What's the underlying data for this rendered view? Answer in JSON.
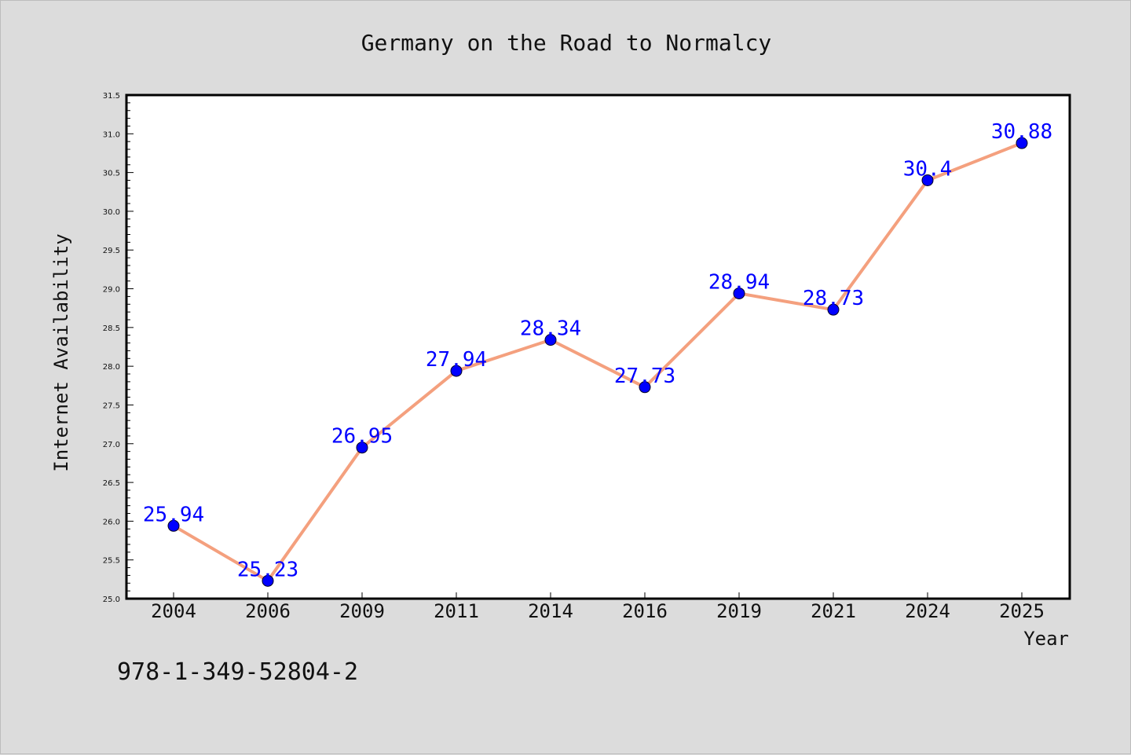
{
  "chart_data": {
    "type": "line",
    "title": "Germany on the Road to Normalcy",
    "xlabel": "Year",
    "ylabel": "Internet Availability",
    "categories": [
      "2004",
      "2006",
      "2009",
      "2011",
      "2014",
      "2016",
      "2019",
      "2021",
      "2024",
      "2025"
    ],
    "series": [
      {
        "values": [
          25.94,
          25.23,
          26.95,
          27.94,
          28.34,
          27.73,
          28.94,
          28.73,
          30.4,
          30.88
        ],
        "data_labels": [
          "25.94",
          "25.23",
          "26.95",
          "27.94",
          "28.34",
          "27.73",
          "28.94",
          "28.73",
          "30.4",
          "30.88"
        ],
        "line_color": "#f4a07e",
        "marker_color": "#0000ff"
      }
    ],
    "ylim": [
      25.0,
      31.5
    ],
    "y_ticks": [
      "25.0",
      "25.5",
      "26.0",
      "26.5",
      "27.0",
      "27.5",
      "28.0",
      "28.5",
      "29.0",
      "29.5",
      "30.0",
      "30.5",
      "31.0",
      "31.5"
    ],
    "grid": false,
    "legend": "none",
    "background_color": "#dcdcdc",
    "plot_background_color": "#ffffff",
    "footer": "978-1-349-52804-2"
  }
}
